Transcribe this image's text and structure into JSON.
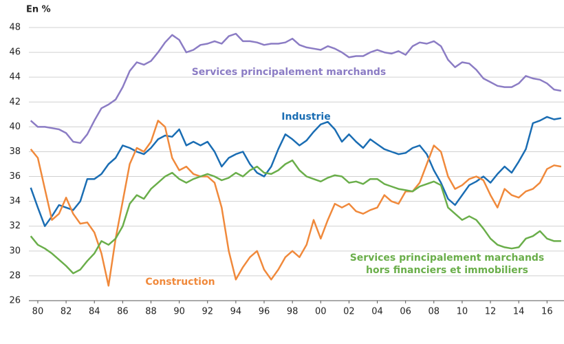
{
  "chart_data": {
    "type": "line",
    "title": "En %",
    "xlim": [
      1979.37,
      2017.2
    ],
    "xticks": [
      {
        "value": 1980,
        "label": "80"
      },
      {
        "value": 1982,
        "label": "82"
      },
      {
        "value": 1984,
        "label": "84"
      },
      {
        "value": 1986,
        "label": "86"
      },
      {
        "value": 1988,
        "label": "88"
      },
      {
        "value": 1990,
        "label": "90"
      },
      {
        "value": 1992,
        "label": "92"
      },
      {
        "value": 1994,
        "label": "94"
      },
      {
        "value": 1996,
        "label": "96"
      },
      {
        "value": 1998,
        "label": "98"
      },
      {
        "value": 2000,
        "label": "00"
      },
      {
        "value": 2002,
        "label": "02"
      },
      {
        "value": 2004,
        "label": "04"
      },
      {
        "value": 2006,
        "label": "06"
      },
      {
        "value": 2008,
        "label": "08"
      },
      {
        "value": 2010,
        "label": "10"
      },
      {
        "value": 2012,
        "label": "12"
      },
      {
        "value": 2014,
        "label": "14"
      },
      {
        "value": 2016,
        "label": "16"
      }
    ],
    "ylim": [
      26,
      48
    ],
    "yticks": [
      26,
      28,
      30,
      32,
      34,
      36,
      38,
      40,
      42,
      44,
      46,
      48
    ],
    "grid": true,
    "x": [
      1979.5,
      1980,
      1980.5,
      1981,
      1981.5,
      1982,
      1982.5,
      1983,
      1983.5,
      1984,
      1984.5,
      1985,
      1985.5,
      1986,
      1986.5,
      1987,
      1987.5,
      1988,
      1988.5,
      1989,
      1989.5,
      1990,
      1990.5,
      1991,
      1991.5,
      1992,
      1992.5,
      1993,
      1993.5,
      1994,
      1994.5,
      1995,
      1995.5,
      1996,
      1996.5,
      1997,
      1997.5,
      1998,
      1998.5,
      1999,
      1999.5,
      2000,
      2000.5,
      2001,
      2001.5,
      2002,
      2002.5,
      2003,
      2003.5,
      2004,
      2004.5,
      2005,
      2005.5,
      2006,
      2006.5,
      2007,
      2007.5,
      2008,
      2008.5,
      2009,
      2009.5,
      2010,
      2010.5,
      2011,
      2011.5,
      2012,
      2012.5,
      2013,
      2013.5,
      2014,
      2014.5,
      2015,
      2015.5,
      2016,
      2016.5,
      2017
    ],
    "series": [
      {
        "name": "Services principalement marchands",
        "color": "#8b7cc4",
        "values": [
          40.5,
          40.0,
          40.0,
          39.9,
          39.8,
          39.5,
          38.8,
          38.7,
          39.4,
          40.5,
          41.5,
          41.8,
          42.2,
          43.2,
          44.5,
          45.2,
          45.0,
          45.3,
          46.0,
          46.8,
          47.4,
          47.0,
          46.0,
          46.2,
          46.6,
          46.7,
          46.9,
          46.7,
          47.3,
          47.5,
          46.9,
          46.9,
          46.8,
          46.6,
          46.7,
          46.7,
          46.8,
          47.1,
          46.6,
          46.4,
          46.3,
          46.2,
          46.5,
          46.3,
          46.0,
          45.6,
          45.7,
          45.7,
          46.0,
          46.2,
          46.0,
          45.9,
          46.1,
          45.8,
          46.5,
          46.8,
          46.7,
          46.9,
          46.5,
          45.4,
          44.8,
          45.2,
          45.1,
          44.6,
          43.9,
          43.6,
          43.3,
          43.2,
          43.2,
          43.5,
          44.1,
          43.9,
          43.8,
          43.5,
          43.0,
          42.9
        ]
      },
      {
        "name": "Industrie",
        "color": "#1a6db3",
        "values": [
          35.1,
          33.5,
          32.0,
          32.8,
          33.7,
          33.5,
          33.3,
          34.0,
          35.8,
          35.8,
          36.2,
          37.0,
          37.5,
          38.5,
          38.3,
          38.0,
          37.8,
          38.3,
          39.0,
          39.3,
          39.2,
          39.8,
          38.5,
          38.8,
          38.5,
          38.8,
          38.0,
          36.8,
          37.5,
          37.8,
          38.0,
          37.0,
          36.3,
          36.0,
          36.8,
          38.2,
          39.4,
          39.0,
          38.5,
          38.9,
          39.6,
          40.2,
          40.4,
          39.8,
          38.8,
          39.4,
          38.8,
          38.3,
          39.0,
          38.6,
          38.2,
          38.0,
          37.8,
          37.9,
          38.3,
          38.5,
          37.8,
          36.5,
          35.5,
          34.2,
          33.7,
          34.5,
          35.3,
          35.6,
          36.0,
          35.5,
          36.2,
          36.8,
          36.3,
          37.2,
          38.2,
          40.3,
          40.5,
          40.8,
          40.6,
          40.7
        ]
      },
      {
        "name": "Construction",
        "color": "#f0893b",
        "values": [
          38.2,
          37.5,
          35.0,
          32.5,
          33.0,
          34.3,
          33.0,
          32.2,
          32.3,
          31.5,
          29.8,
          27.2,
          31.0,
          34.0,
          37.0,
          38.3,
          38.0,
          38.8,
          40.5,
          40.0,
          37.5,
          36.5,
          36.8,
          36.2,
          36.0,
          36.0,
          35.5,
          33.5,
          30.0,
          27.7,
          28.7,
          29.5,
          30.0,
          28.5,
          27.7,
          28.5,
          29.5,
          30.0,
          29.5,
          30.5,
          32.5,
          31.0,
          32.5,
          33.8,
          33.5,
          33.8,
          33.2,
          33.0,
          33.3,
          33.5,
          34.5,
          34.0,
          33.8,
          34.8,
          34.8,
          35.5,
          37.0,
          38.5,
          38.0,
          36.0,
          35.0,
          35.3,
          35.8,
          36.0,
          35.7,
          34.5,
          33.5,
          35.0,
          34.5,
          34.3,
          34.8,
          35.0,
          35.5,
          36.6,
          36.9,
          36.8
        ]
      },
      {
        "name": "Services principalement marchands hors financiers et immobiliers",
        "color": "#6aae4a",
        "values": [
          31.2,
          30.5,
          30.2,
          29.8,
          29.3,
          28.8,
          28.2,
          28.5,
          29.2,
          29.8,
          30.8,
          30.5,
          31.0,
          32.0,
          33.8,
          34.5,
          34.2,
          35.0,
          35.5,
          36.0,
          36.3,
          35.8,
          35.5,
          35.8,
          36.0,
          36.2,
          36.0,
          35.7,
          35.9,
          36.3,
          36.0,
          36.5,
          36.8,
          36.3,
          36.2,
          36.5,
          37.0,
          37.3,
          36.5,
          36.0,
          35.8,
          35.6,
          35.9,
          36.1,
          36.0,
          35.5,
          35.6,
          35.4,
          35.8,
          35.8,
          35.4,
          35.2,
          35.0,
          34.9,
          34.8,
          35.2,
          35.4,
          35.6,
          35.3,
          33.5,
          33.0,
          32.5,
          32.8,
          32.5,
          31.8,
          31.0,
          30.5,
          30.3,
          30.2,
          30.3,
          31.0,
          31.2,
          31.6,
          31.0,
          30.8,
          30.8
        ]
      }
    ]
  }
}
